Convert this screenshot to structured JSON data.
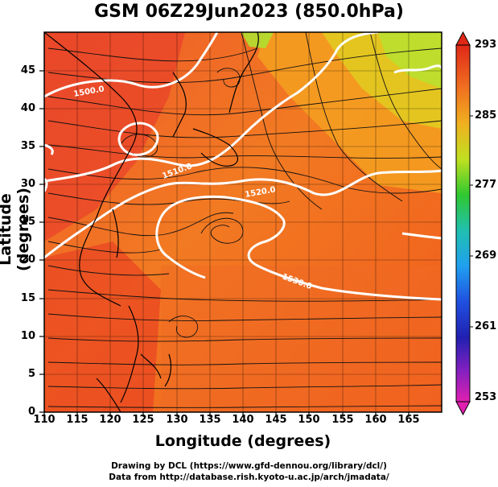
{
  "title": "GSM 06Z29Jun2023 (850.0hPa)",
  "xlabel": "Longitude (degrees)",
  "ylabel": "Latitude  (degrees)",
  "credit_line1": "Drawing by DCL (https://www.gfd-dennou.org/library/dcl/)",
  "credit_line2": "Data from http://database.rish.kyoto-u.ac.jp/arch/jmadata/",
  "map": {
    "lon_range": [
      110,
      170
    ],
    "lat_range": [
      0,
      50
    ],
    "lon_ticks": [
      "110",
      "115",
      "120",
      "125",
      "130",
      "135",
      "140",
      "145",
      "150",
      "155",
      "160",
      "165"
    ],
    "lat_ticks": [
      "0",
      "5",
      "10",
      "15",
      "20",
      "25",
      "30",
      "35",
      "40",
      "45"
    ],
    "field": "temperature (K) shaded, streamlines of wind, geopotential height contours",
    "contour_labels": [
      "1500.0",
      "1510.0",
      "1520.0",
      "1530.0"
    ],
    "colorbar": {
      "ticks": [
        "293",
        "285",
        "277",
        "269",
        "261",
        "253"
      ],
      "colors": [
        "#e03020",
        "#f08020",
        "#f0c020",
        "#a0e020",
        "#20c040",
        "#20c0c0",
        "#2080ff",
        "#2020c0",
        "#8020c0",
        "#e020b0"
      ]
    }
  }
}
